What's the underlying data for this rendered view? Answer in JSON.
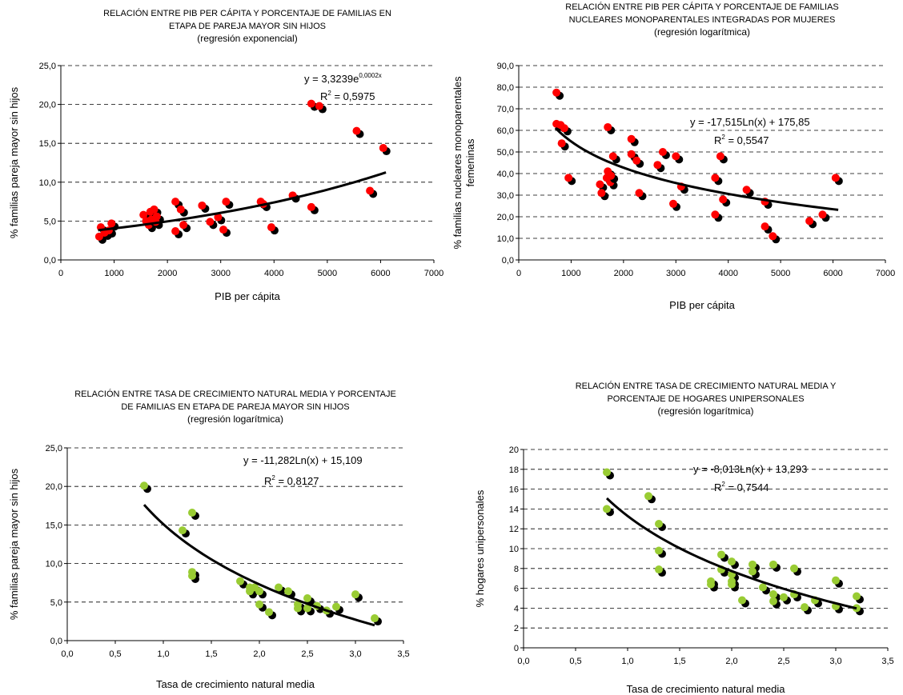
{
  "chart_data": [
    {
      "type": "scatter",
      "title_lines": [
        "RELACIÓN ENTRE PIB PER CÁPITA Y PORCENTAJE DE FAMILIAS EN",
        "ETAPA DE PAREJA MAYOR SIN HIJOS"
      ],
      "subtitle": "(regresión exponencial)",
      "xlabel": "PIB per cápita",
      "ylabel_lines": [
        "% familias pareja mayor sin hijos"
      ],
      "xlim": [
        0,
        7000
      ],
      "ylim": [
        0,
        25
      ],
      "xticks": [
        "0",
        "1000",
        "2000",
        "3000",
        "4000",
        "5000",
        "6000",
        "7000"
      ],
      "yticks": [
        "0,0",
        "5,0",
        "10,0",
        "15,0",
        "20,0",
        "25,0"
      ],
      "grid": "horizontal dashed",
      "point_color": "#ff0000",
      "shadow_color": "#000000",
      "trend": {
        "kind": "exp",
        "a": 3.3239,
        "b": 0.0002,
        "from": 700,
        "to": 6100
      },
      "equation": {
        "text": "y = 3,3239e",
        "sup": "0,0002x",
        "r2_label": "R",
        "r2_sup": "2",
        "r2_value": " = 0,5975"
      },
      "points": [
        [
          720,
          3.0
        ],
        [
          750,
          4.2
        ],
        [
          820,
          3.5
        ],
        [
          900,
          3.8
        ],
        [
          950,
          4.7
        ],
        [
          1550,
          5.8
        ],
        [
          1600,
          5.0
        ],
        [
          1650,
          4.5
        ],
        [
          1680,
          6.2
        ],
        [
          1700,
          5.2
        ],
        [
          1750,
          6.5
        ],
        [
          1800,
          5.6
        ],
        [
          1780,
          4.9
        ],
        [
          2150,
          3.7
        ],
        [
          2150,
          7.5
        ],
        [
          2250,
          6.5
        ],
        [
          2300,
          4.5
        ],
        [
          2650,
          7.0
        ],
        [
          2800,
          4.9
        ],
        [
          2950,
          5.5
        ],
        [
          3050,
          3.9
        ],
        [
          3100,
          7.5
        ],
        [
          3750,
          7.5
        ],
        [
          3800,
          7.2
        ],
        [
          3950,
          4.2
        ],
        [
          4350,
          8.3
        ],
        [
          4700,
          6.8
        ],
        [
          4700,
          20.1
        ],
        [
          4850,
          19.8
        ],
        [
          5550,
          16.6
        ],
        [
          5800,
          8.9
        ],
        [
          6050,
          14.4
        ]
      ]
    },
    {
      "type": "scatter",
      "title_lines": [
        "RELACIÓN ENTRE PIB PER CÁPITA Y PORCENTAJE DE FAMILIAS",
        "NUCLEARES MONOPARENTALES  INTEGRADAS POR MUJERES"
      ],
      "subtitle": "(regresión logarítmica)",
      "xlabel": "PIB per cápita",
      "ylabel_lines": [
        "% familias nucleares monoparentales",
        "femeninas"
      ],
      "xlim": [
        0,
        7000
      ],
      "ylim": [
        0,
        90
      ],
      "xticks": [
        "0",
        "1000",
        "2000",
        "3000",
        "4000",
        "5000",
        "6000",
        "7000"
      ],
      "yticks": [
        "0,0",
        "10,0",
        "20,0",
        "30,0",
        "40,0",
        "50,0",
        "60,0",
        "70,0",
        "80,0",
        "90,0"
      ],
      "grid": "horizontal dashed",
      "point_color": "#ff0000",
      "shadow_color": "#000000",
      "trend": {
        "kind": "log",
        "a": -17.515,
        "b": 175.85,
        "from": 700,
        "to": 6100
      },
      "equation": {
        "text": "y = -17,515Ln(x) + 175,85",
        "sup": "",
        "r2_label": "R",
        "r2_sup": "2",
        "r2_value": " = 0,5547"
      },
      "points": [
        [
          720,
          77.5
        ],
        [
          720,
          63.0
        ],
        [
          800,
          62.5
        ],
        [
          820,
          54.0
        ],
        [
          870,
          61.0
        ],
        [
          950,
          38.0
        ],
        [
          1550,
          35.0
        ],
        [
          1580,
          31.0
        ],
        [
          1680,
          38.0
        ],
        [
          1700,
          61.5
        ],
        [
          1700,
          41.0
        ],
        [
          1750,
          36.0
        ],
        [
          1760,
          39.0
        ],
        [
          1800,
          48.0
        ],
        [
          2150,
          56.0
        ],
        [
          2150,
          49.0
        ],
        [
          2250,
          46.0
        ],
        [
          2300,
          31.0
        ],
        [
          2650,
          44.0
        ],
        [
          2750,
          50.0
        ],
        [
          2950,
          26.0
        ],
        [
          3000,
          48.0
        ],
        [
          3100,
          34.0
        ],
        [
          3750,
          38.0
        ],
        [
          3750,
          21.0
        ],
        [
          3850,
          48.0
        ],
        [
          3900,
          28.0
        ],
        [
          4350,
          32.5
        ],
        [
          4700,
          27.0
        ],
        [
          4700,
          15.5
        ],
        [
          4850,
          11.0
        ],
        [
          5550,
          18.0
        ],
        [
          5800,
          21.0
        ],
        [
          6050,
          38.0
        ]
      ]
    },
    {
      "type": "scatter",
      "title_lines": [
        "RELACIÓN ENTRE TASA DE CRECIMIENTO NATURAL MEDIA Y PORCENTAJE",
        "DE FAMILIAS EN ETAPA DE PAREJA MAYOR SIN HIJOS"
      ],
      "subtitle": "(regresión logarítmica)",
      "xlabel": "Tasa de crecimiento natural media",
      "ylabel_lines": [
        "% familias pareja mayor sin hijos"
      ],
      "xlim": [
        0,
        3.5
      ],
      "ylim": [
        0,
        25
      ],
      "xticks": [
        "0,0",
        "0,5",
        "1,0",
        "1,5",
        "2,0",
        "2,5",
        "3,0",
        "3,5"
      ],
      "yticks": [
        "0,0",
        "5,0",
        "10,0",
        "15,0",
        "20,0",
        "25,0"
      ],
      "grid": "horizontal dashed",
      "point_color": "#99cc33",
      "shadow_color": "#000000",
      "trend": {
        "kind": "log",
        "a": -11.282,
        "b": 15.109,
        "from": 0.8,
        "to": 3.2
      },
      "equation": {
        "text": "y = -11,282Ln(x) + 15,109",
        "sup": "",
        "r2_label": "R",
        "r2_sup": "2",
        "r2_value": " = 0,8127"
      },
      "points": [
        [
          0.8,
          20.1
        ],
        [
          1.2,
          14.3
        ],
        [
          1.3,
          16.6
        ],
        [
          1.3,
          8.9
        ],
        [
          1.3,
          8.4
        ],
        [
          1.8,
          7.7
        ],
        [
          1.9,
          6.9
        ],
        [
          1.9,
          6.4
        ],
        [
          1.95,
          6.9
        ],
        [
          2.0,
          6.4
        ],
        [
          2.0,
          4.7
        ],
        [
          2.1,
          3.7
        ],
        [
          2.2,
          6.9
        ],
        [
          2.3,
          6.4
        ],
        [
          2.4,
          4.7
        ],
        [
          2.4,
          4.2
        ],
        [
          2.5,
          5.5
        ],
        [
          2.5,
          4.2
        ],
        [
          2.6,
          4.5
        ],
        [
          2.7,
          3.9
        ],
        [
          2.8,
          4.4
        ],
        [
          3.0,
          6.0
        ],
        [
          3.2,
          2.9
        ]
      ]
    },
    {
      "type": "scatter",
      "title_lines": [
        "RELACIÓN ENTRE TASA DE CRECIMIENTO NATURAL MEDIA Y",
        "PORCENTAJE DE HOGARES UNIPERSONALES"
      ],
      "subtitle": "(regresión logarítmica)",
      "xlabel": "Tasa de crecimiento natural media",
      "ylabel_lines": [
        "% hogares unipersonales"
      ],
      "xlim": [
        0,
        3.5
      ],
      "ylim": [
        0,
        20
      ],
      "xticks": [
        "0,0",
        "0,5",
        "1,0",
        "1,5",
        "2,0",
        "2,5",
        "3,0",
        "3,5"
      ],
      "yticks": [
        "0",
        "2",
        "4",
        "6",
        "8",
        "10",
        "12",
        "14",
        "16",
        "18",
        "20"
      ],
      "grid": "horizontal dashed",
      "point_color": "#99cc33",
      "shadow_color": "#000000",
      "trend": {
        "kind": "log",
        "a": -8.013,
        "b": 13.293,
        "from": 0.8,
        "to": 3.2
      },
      "equation": {
        "text": "y = -8,013Ln(x) + 13,293",
        "sup": "",
        "r2_label": "R",
        "r2_sup": "2",
        "r2_value": " = 0,7544"
      },
      "points": [
        [
          0.8,
          17.7
        ],
        [
          0.8,
          14.0
        ],
        [
          1.2,
          15.3
        ],
        [
          1.3,
          12.5
        ],
        [
          1.3,
          9.8
        ],
        [
          1.3,
          7.9
        ],
        [
          1.8,
          6.7
        ],
        [
          1.8,
          6.4
        ],
        [
          1.9,
          9.4
        ],
        [
          1.9,
          7.9
        ],
        [
          2.0,
          8.7
        ],
        [
          2.0,
          7.4
        ],
        [
          2.0,
          6.7
        ],
        [
          2.0,
          6.4
        ],
        [
          2.1,
          4.8
        ],
        [
          2.2,
          8.4
        ],
        [
          2.2,
          7.7
        ],
        [
          2.3,
          6.1
        ],
        [
          2.4,
          8.4
        ],
        [
          2.4,
          5.4
        ],
        [
          2.4,
          4.7
        ],
        [
          2.5,
          5.1
        ],
        [
          2.6,
          8.0
        ],
        [
          2.6,
          5.4
        ],
        [
          2.7,
          4.1
        ],
        [
          2.8,
          4.8
        ],
        [
          3.0,
          6.8
        ],
        [
          3.0,
          4.2
        ],
        [
          3.2,
          5.2
        ],
        [
          3.2,
          4.0
        ]
      ]
    }
  ]
}
